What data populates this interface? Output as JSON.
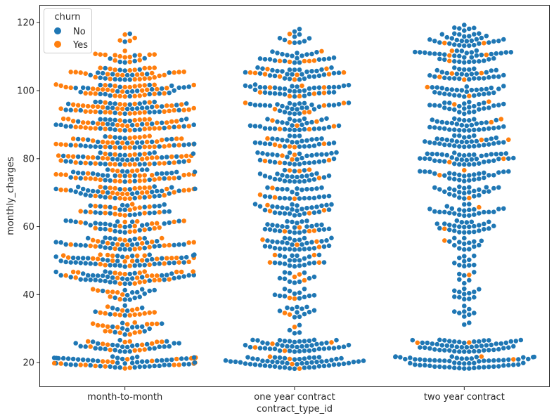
{
  "chart_data": {
    "type": "scatter",
    "subtype": "swarm",
    "title": "",
    "xlabel": "contract_type_id",
    "ylabel": "monthly_charges",
    "categories": [
      "month-to-month",
      "one year contract",
      "two year contract"
    ],
    "ylim": [
      13,
      125
    ],
    "yticks": [
      20,
      40,
      60,
      80,
      100,
      120
    ],
    "grid": false,
    "legend": {
      "title": "churn",
      "placement": "top-left",
      "entries": [
        {
          "name": "No",
          "color": "#1f77b4"
        },
        {
          "name": "Yes",
          "color": "#ff7f0e"
        }
      ]
    },
    "series": [
      {
        "name": "No",
        "color": "#1f77b4",
        "bands": [
          [
            [
              20,
              50
            ],
            [
              25,
              28
            ],
            [
              30,
              12
            ],
            [
              35,
              8
            ],
            [
              40,
              14
            ],
            [
              45,
              38
            ],
            [
              50,
              40
            ],
            [
              55,
              32
            ],
            [
              60,
              26
            ],
            [
              65,
              22
            ],
            [
              70,
              32
            ],
            [
              75,
              30
            ],
            [
              80,
              34
            ],
            [
              85,
              30
            ],
            [
              90,
              30
            ],
            [
              95,
              30
            ],
            [
              100,
              26
            ],
            [
              105,
              18
            ],
            [
              110,
              6
            ],
            [
              115,
              2
            ]
          ],
          [
            [
              20,
              56
            ],
            [
              25,
              44
            ],
            [
              30,
              4
            ],
            [
              35,
              12
            ],
            [
              40,
              12
            ],
            [
              45,
              10
            ],
            [
              50,
              20
            ],
            [
              55,
              30
            ],
            [
              60,
              26
            ],
            [
              65,
              28
            ],
            [
              70,
              24
            ],
            [
              75,
              26
            ],
            [
              80,
              30
            ],
            [
              85,
              26
            ],
            [
              90,
              30
            ],
            [
              95,
              28
            ],
            [
              100,
              34
            ],
            [
              105,
              30
            ],
            [
              110,
              22
            ],
            [
              115,
              8
            ],
            [
              118,
              2
            ]
          ],
          [
            [
              20,
              60
            ],
            [
              25,
              52
            ],
            [
              30,
              2
            ],
            [
              35,
              8
            ],
            [
              40,
              12
            ],
            [
              45,
              6
            ],
            [
              50,
              10
            ],
            [
              55,
              14
            ],
            [
              60,
              26
            ],
            [
              65,
              24
            ],
            [
              70,
              24
            ],
            [
              75,
              26
            ],
            [
              80,
              40
            ],
            [
              85,
              34
            ],
            [
              90,
              34
            ],
            [
              95,
              26
            ],
            [
              100,
              28
            ],
            [
              105,
              30
            ],
            [
              110,
              34
            ],
            [
              115,
              28
            ],
            [
              118,
              8
            ]
          ]
        ]
      },
      {
        "name": "Yes",
        "color": "#ff7f0e",
        "bands": [
          [
            [
              20,
              22
            ],
            [
              25,
              14
            ],
            [
              30,
              16
            ],
            [
              35,
              14
            ],
            [
              40,
              8
            ],
            [
              45,
              24
            ],
            [
              50,
              26
            ],
            [
              55,
              22
            ],
            [
              60,
              16
            ],
            [
              65,
              16
            ],
            [
              70,
              30
            ],
            [
              75,
              30
            ],
            [
              80,
              34
            ],
            [
              85,
              34
            ],
            [
              90,
              36
            ],
            [
              95,
              36
            ],
            [
              100,
              34
            ],
            [
              105,
              30
            ],
            [
              110,
              14
            ],
            [
              115,
              4
            ]
          ],
          [
            [
              20,
              4
            ],
            [
              25,
              4
            ],
            [
              30,
              1
            ],
            [
              35,
              2
            ],
            [
              40,
              2
            ],
            [
              45,
              3
            ],
            [
              50,
              4
            ],
            [
              55,
              4
            ],
            [
              60,
              4
            ],
            [
              65,
              4
            ],
            [
              70,
              4
            ],
            [
              75,
              4
            ],
            [
              80,
              6
            ],
            [
              85,
              6
            ],
            [
              90,
              6
            ],
            [
              95,
              6
            ],
            [
              100,
              8
            ],
            [
              105,
              10
            ],
            [
              110,
              6
            ],
            [
              115,
              2
            ]
          ],
          [
            [
              20,
              2
            ],
            [
              25,
              2
            ],
            [
              45,
              1
            ],
            [
              55,
              1
            ],
            [
              60,
              1
            ],
            [
              65,
              1
            ],
            [
              70,
              1
            ],
            [
              75,
              2
            ],
            [
              80,
              2
            ],
            [
              85,
              2
            ],
            [
              90,
              2
            ],
            [
              95,
              2
            ],
            [
              100,
              2
            ],
            [
              105,
              4
            ],
            [
              110,
              4
            ],
            [
              115,
              2
            ]
          ]
        ]
      }
    ]
  }
}
